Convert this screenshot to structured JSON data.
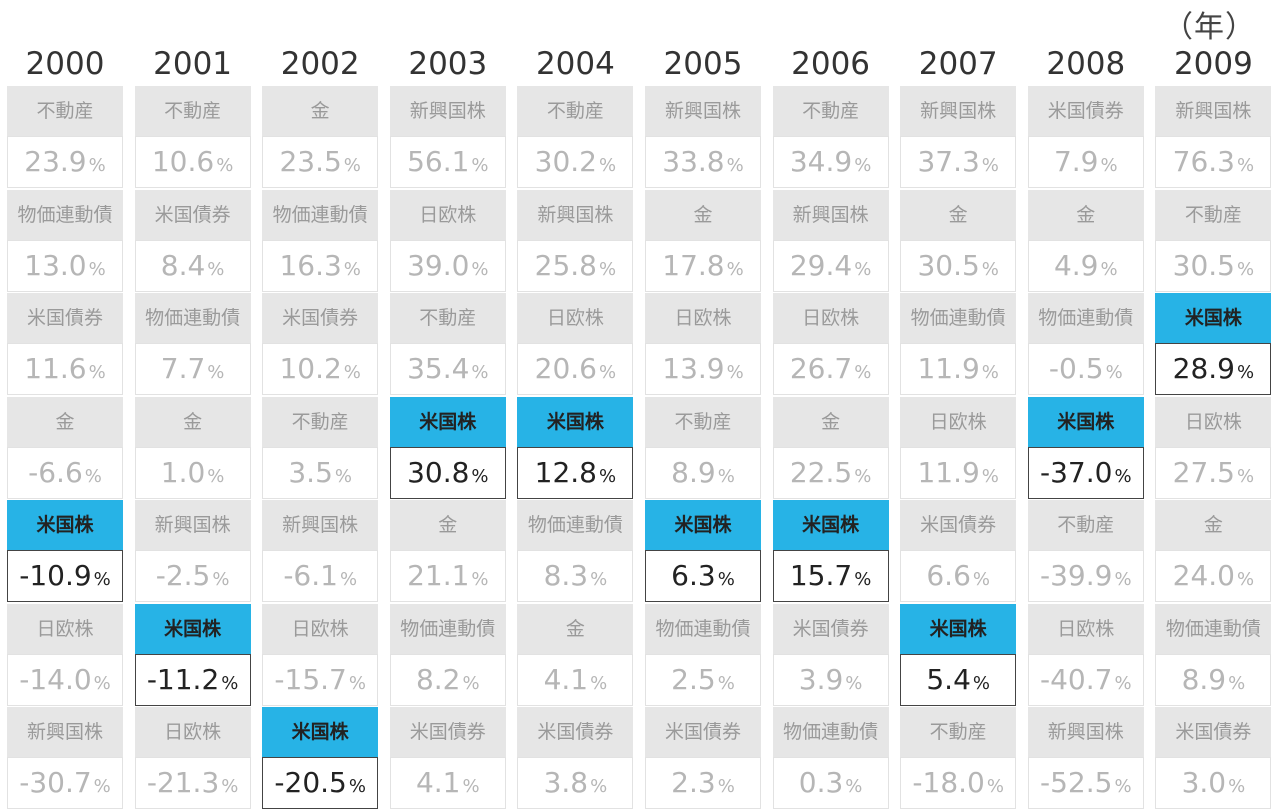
{
  "unit_label": "（年）",
  "chart_data": {
    "type": "table",
    "highlight_asset": "米国株",
    "value_suffix": "%",
    "colors": {
      "highlight_fill": "#27b3e6",
      "label_fill": "#e6e6e6",
      "muted_text": "#b6b6b6",
      "highlight_text": "#222222"
    },
    "columns": [
      {
        "year": "2000",
        "cells": [
          {
            "asset": "不動産",
            "value": "23.9"
          },
          {
            "asset": "物価連動債",
            "value": "13.0"
          },
          {
            "asset": "米国債券",
            "value": "11.6"
          },
          {
            "asset": "金",
            "value": "-6.6"
          },
          {
            "asset": "米国株",
            "value": "-10.9"
          },
          {
            "asset": "日欧株",
            "value": "-14.0"
          },
          {
            "asset": "新興国株",
            "value": "-30.7"
          }
        ]
      },
      {
        "year": "2001",
        "cells": [
          {
            "asset": "不動産",
            "value": "10.6"
          },
          {
            "asset": "米国債券",
            "value": "8.4"
          },
          {
            "asset": "物価連動債",
            "value": "7.7"
          },
          {
            "asset": "金",
            "value": "1.0"
          },
          {
            "asset": "新興国株",
            "value": "-2.5"
          },
          {
            "asset": "米国株",
            "value": "-11.2"
          },
          {
            "asset": "日欧株",
            "value": "-21.3"
          }
        ]
      },
      {
        "year": "2002",
        "cells": [
          {
            "asset": "金",
            "value": "23.5"
          },
          {
            "asset": "物価連動債",
            "value": "16.3"
          },
          {
            "asset": "米国債券",
            "value": "10.2"
          },
          {
            "asset": "不動産",
            "value": "3.5"
          },
          {
            "asset": "新興国株",
            "value": "-6.1"
          },
          {
            "asset": "日欧株",
            "value": "-15.7"
          },
          {
            "asset": "米国株",
            "value": "-20.5"
          }
        ]
      },
      {
        "year": "2003",
        "cells": [
          {
            "asset": "新興国株",
            "value": "56.1"
          },
          {
            "asset": "日欧株",
            "value": "39.0"
          },
          {
            "asset": "不動産",
            "value": "35.4"
          },
          {
            "asset": "米国株",
            "value": "30.8"
          },
          {
            "asset": "金",
            "value": "21.1"
          },
          {
            "asset": "物価連動債",
            "value": "8.2"
          },
          {
            "asset": "米国債券",
            "value": "4.1"
          }
        ]
      },
      {
        "year": "2004",
        "cells": [
          {
            "asset": "不動産",
            "value": "30.2"
          },
          {
            "asset": "新興国株",
            "value": "25.8"
          },
          {
            "asset": "日欧株",
            "value": "20.6"
          },
          {
            "asset": "米国株",
            "value": "12.8"
          },
          {
            "asset": "物価連動債",
            "value": "8.3"
          },
          {
            "asset": "金",
            "value": "4.1"
          },
          {
            "asset": "米国債券",
            "value": "3.8"
          }
        ]
      },
      {
        "year": "2005",
        "cells": [
          {
            "asset": "新興国株",
            "value": "33.8"
          },
          {
            "asset": "金",
            "value": "17.8"
          },
          {
            "asset": "日欧株",
            "value": "13.9"
          },
          {
            "asset": "不動産",
            "value": "8.9"
          },
          {
            "asset": "米国株",
            "value": "6.3"
          },
          {
            "asset": "物価連動債",
            "value": "2.5"
          },
          {
            "asset": "米国債券",
            "value": "2.3"
          }
        ]
      },
      {
        "year": "2006",
        "cells": [
          {
            "asset": "不動産",
            "value": "34.9"
          },
          {
            "asset": "新興国株",
            "value": "29.4"
          },
          {
            "asset": "日欧株",
            "value": "26.7"
          },
          {
            "asset": "金",
            "value": "22.5"
          },
          {
            "asset": "米国株",
            "value": "15.7"
          },
          {
            "asset": "米国債券",
            "value": "3.9"
          },
          {
            "asset": "物価連動債",
            "value": "0.3"
          }
        ]
      },
      {
        "year": "2007",
        "cells": [
          {
            "asset": "新興国株",
            "value": "37.3"
          },
          {
            "asset": "金",
            "value": "30.5"
          },
          {
            "asset": "物価連動債",
            "value": "11.9"
          },
          {
            "asset": "日欧株",
            "value": "11.9"
          },
          {
            "asset": "米国債券",
            "value": "6.6"
          },
          {
            "asset": "米国株",
            "value": "5.4"
          },
          {
            "asset": "不動産",
            "value": "-18.0"
          }
        ]
      },
      {
        "year": "2008",
        "cells": [
          {
            "asset": "米国債券",
            "value": "7.9"
          },
          {
            "asset": "金",
            "value": "4.9"
          },
          {
            "asset": "物価連動債",
            "value": "-0.5"
          },
          {
            "asset": "米国株",
            "value": "-37.0"
          },
          {
            "asset": "不動産",
            "value": "-39.9"
          },
          {
            "asset": "日欧株",
            "value": "-40.7"
          },
          {
            "asset": "新興国株",
            "value": "-52.5"
          }
        ]
      },
      {
        "year": "2009",
        "cells": [
          {
            "asset": "新興国株",
            "value": "76.3"
          },
          {
            "asset": "不動産",
            "value": "30.5"
          },
          {
            "asset": "米国株",
            "value": "28.9"
          },
          {
            "asset": "日欧株",
            "value": "27.5"
          },
          {
            "asset": "金",
            "value": "24.0"
          },
          {
            "asset": "物価連動債",
            "value": "8.9"
          },
          {
            "asset": "米国債券",
            "value": "3.0"
          }
        ]
      }
    ]
  }
}
